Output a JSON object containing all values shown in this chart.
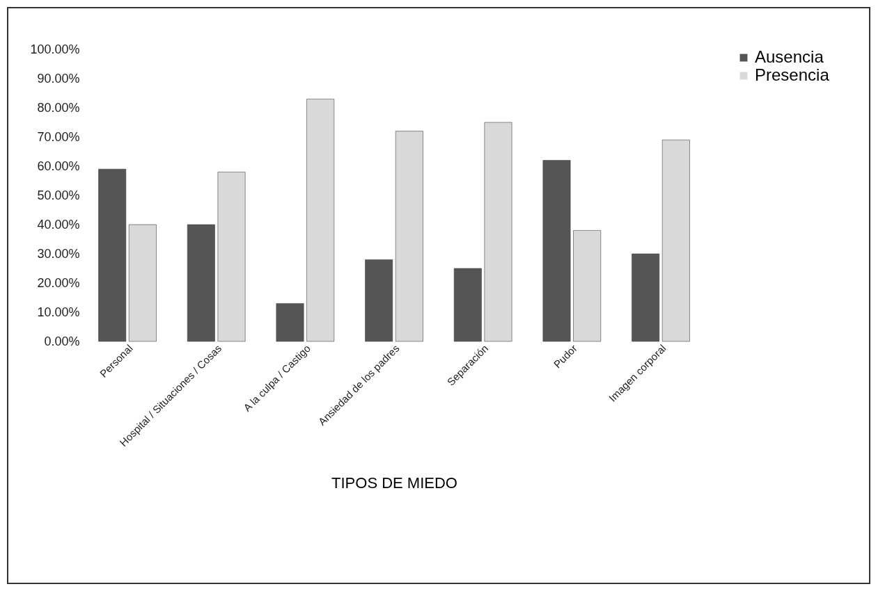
{
  "chart_data": {
    "type": "bar",
    "xlabel": "TIPOS DE MIEDO",
    "categories": [
      "Personal",
      "Hospital / Situaciones / Cosas",
      "A la culpa / Castigo",
      "Ansiedad de los padres",
      "Separación",
      "Pudor",
      "Imagen corporal"
    ],
    "series": [
      {
        "name": "Ausencia",
        "color": "#555555",
        "values": [
          59,
          40,
          13,
          28,
          25,
          62,
          30
        ]
      },
      {
        "name": "Presencia",
        "color": "#d9d9d9",
        "values": [
          40,
          58,
          83,
          72,
          75,
          38,
          69
        ]
      }
    ],
    "ylim": [
      0,
      100
    ],
    "yticks": [
      {
        "value": 0,
        "label": "0.00%"
      },
      {
        "value": 10,
        "label": "10.00%"
      },
      {
        "value": 20,
        "label": "20.00%"
      },
      {
        "value": 30,
        "label": "30.00%"
      },
      {
        "value": 40,
        "label": "40.00%"
      },
      {
        "value": 50,
        "label": "50.00%"
      },
      {
        "value": 60,
        "label": "60.00%"
      },
      {
        "value": 70,
        "label": "70.00%"
      },
      {
        "value": 80,
        "label": "80.00%"
      },
      {
        "value": 90,
        "label": "90.00%"
      },
      {
        "value": 100,
        "label": "100.00%"
      }
    ],
    "legend": "right",
    "grid": false
  }
}
